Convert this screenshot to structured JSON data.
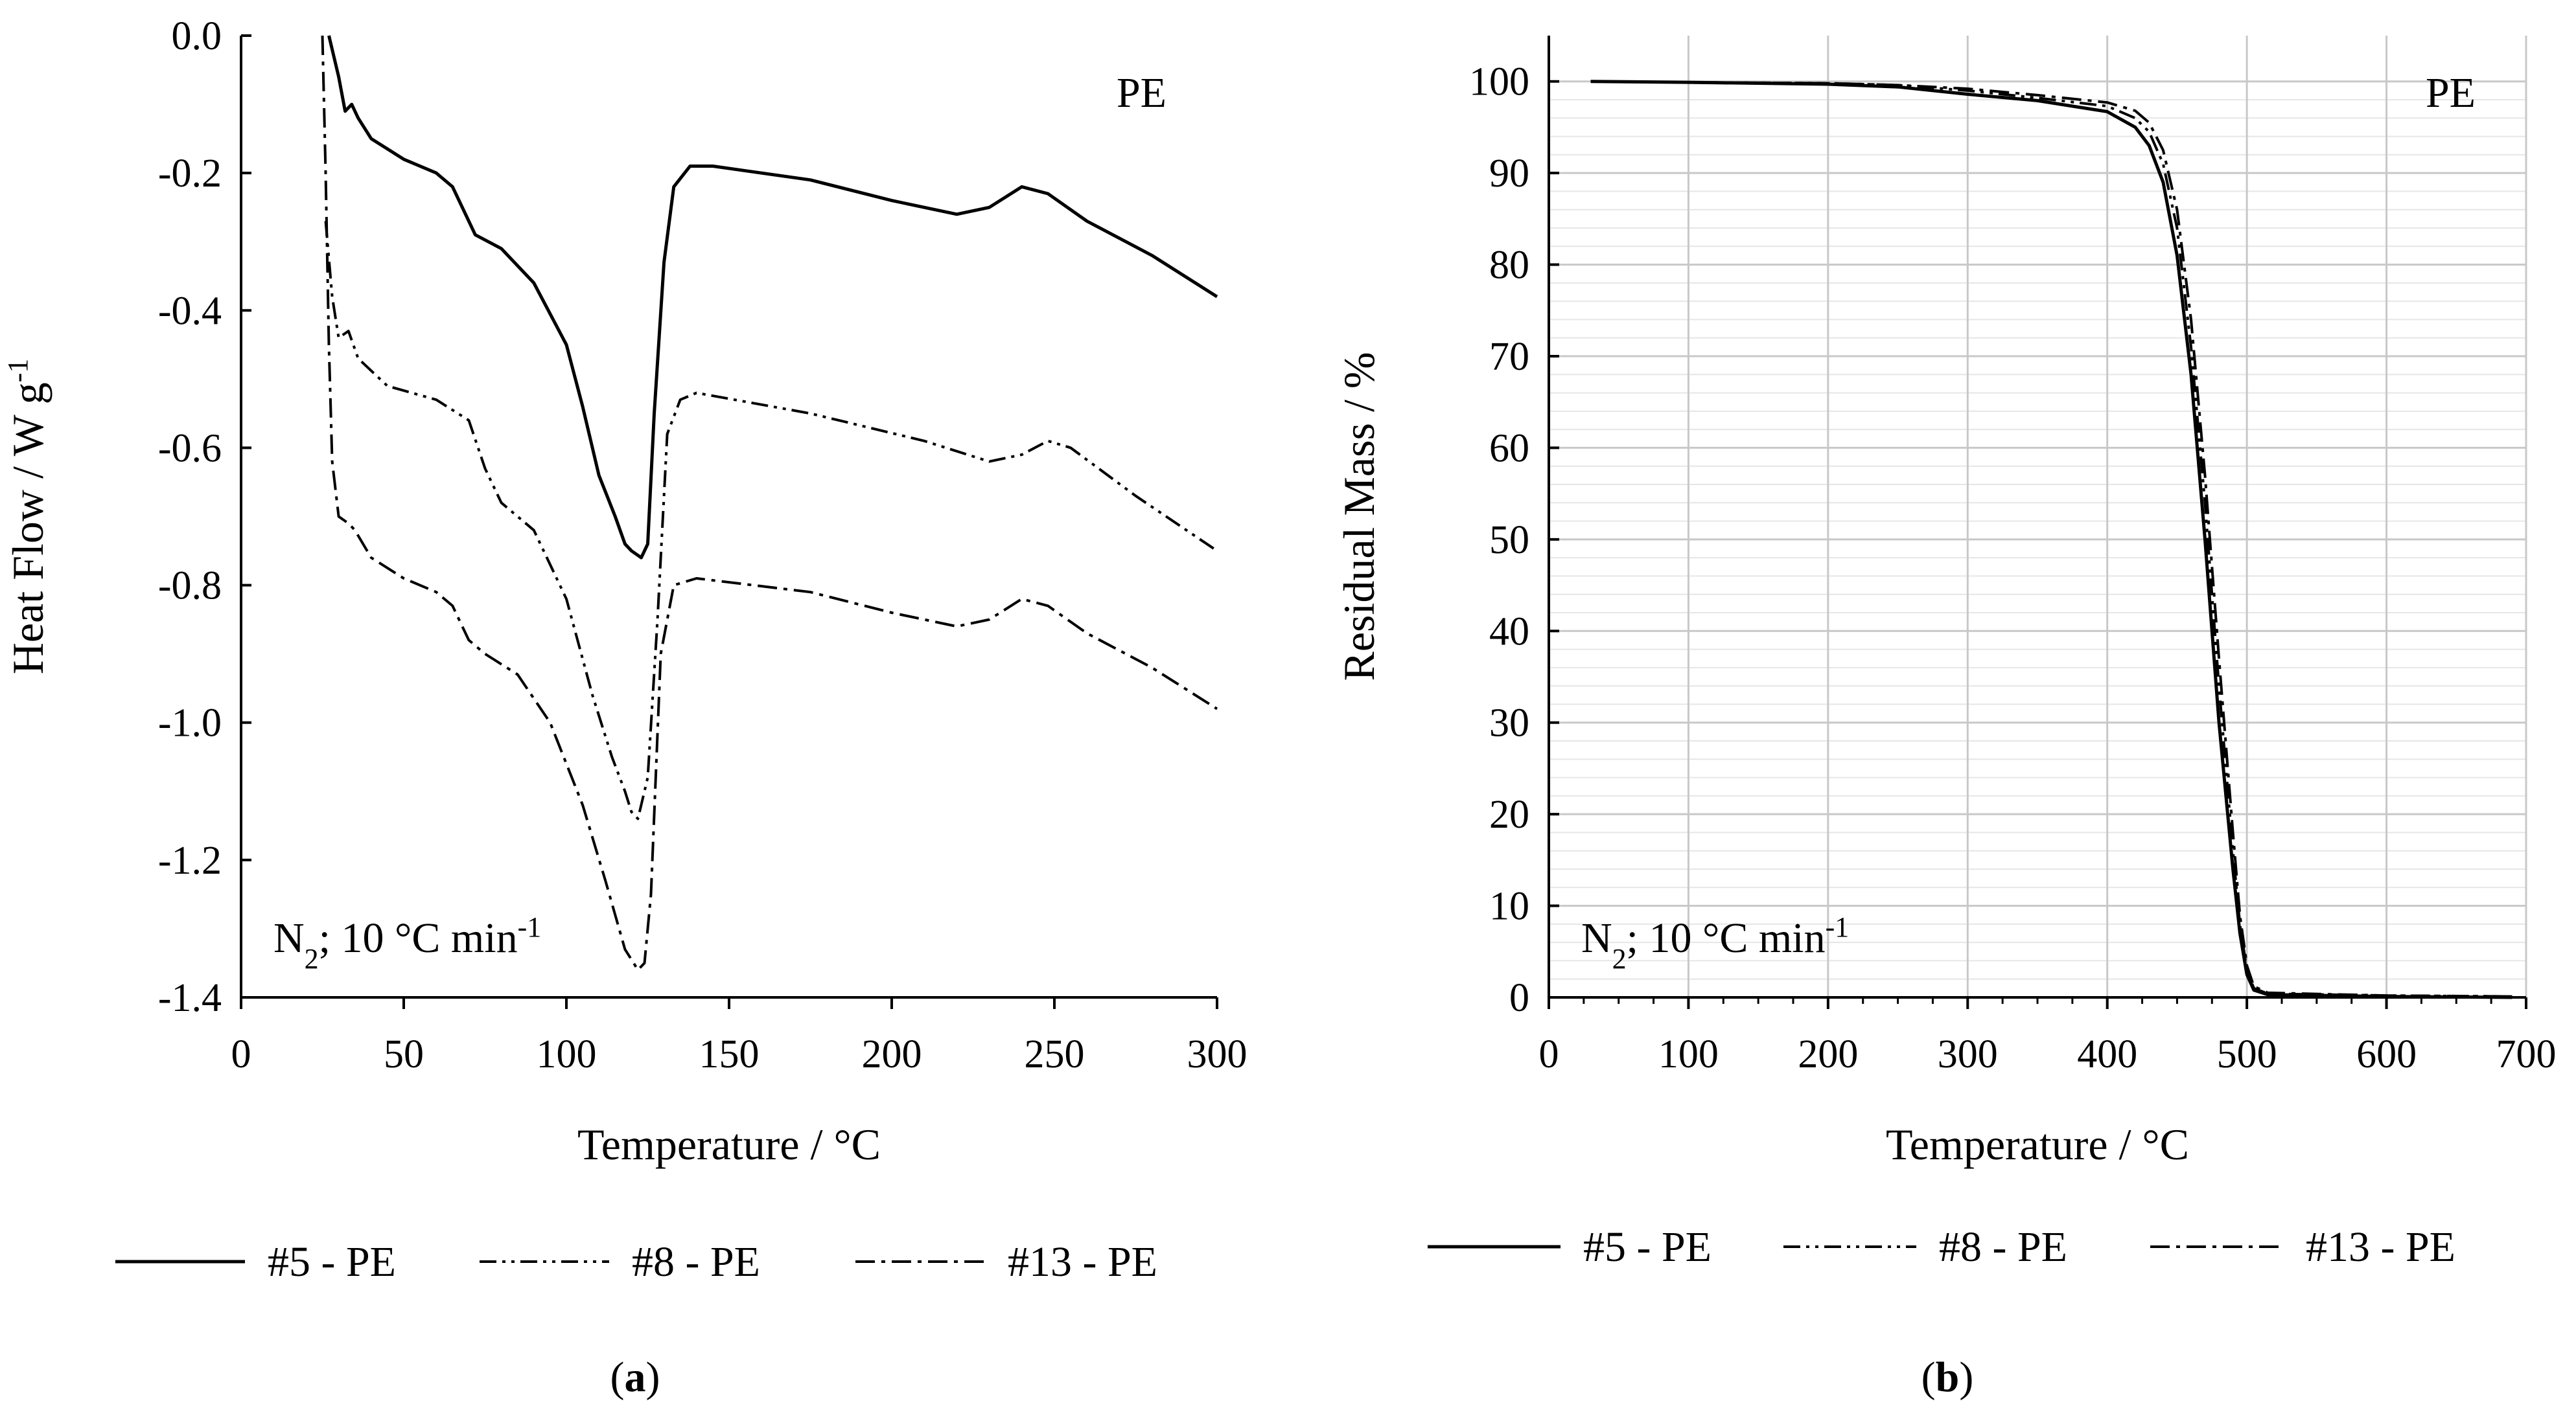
{
  "chart_data": [
    {
      "id": "a",
      "type": "line",
      "panel_label": "a",
      "annotation": "PE",
      "condition": {
        "base": "N",
        "sub": "2",
        "rest": "; 10 °C min",
        "sup": "-1"
      },
      "xlabel": "Temperature / °C",
      "ylabel": {
        "text": "Heat Flow / W g",
        "sup": "-1"
      },
      "xlim": [
        0,
        300
      ],
      "ylim": [
        -1.4,
        0.0
      ],
      "xticks": [
        "0",
        "50",
        "100",
        "150",
        "200",
        "250",
        "300"
      ],
      "yticks": [
        "0.0",
        "-0.2",
        "-0.4",
        "-0.6",
        "-0.8",
        "-1.0",
        "-1.2",
        "-1.4"
      ],
      "legend": [
        "#5 - PE",
        "#8 -  PE",
        "#13 - PE"
      ],
      "series": [
        {
          "name": "#5 - PE",
          "dash": "solid",
          "points": [
            [
              27,
              0.0
            ],
            [
              30,
              -0.06
            ],
            [
              32,
              -0.11
            ],
            [
              34,
              -0.1
            ],
            [
              36,
              -0.12
            ],
            [
              40,
              -0.15
            ],
            [
              50,
              -0.18
            ],
            [
              60,
              -0.2
            ],
            [
              65,
              -0.22
            ],
            [
              70,
              -0.27
            ],
            [
              72,
              -0.29
            ],
            [
              80,
              -0.31
            ],
            [
              90,
              -0.36
            ],
            [
              100,
              -0.45
            ],
            [
              105,
              -0.54
            ],
            [
              110,
              -0.64
            ],
            [
              115,
              -0.7
            ],
            [
              118,
              -0.74
            ],
            [
              120,
              -0.75
            ],
            [
              123,
              -0.76
            ],
            [
              125,
              -0.74
            ],
            [
              127,
              -0.55
            ],
            [
              130,
              -0.33
            ],
            [
              133,
              -0.22
            ],
            [
              138,
              -0.19
            ],
            [
              145,
              -0.19
            ],
            [
              175,
              -0.21
            ],
            [
              200,
              -0.24
            ],
            [
              220,
              -0.26
            ],
            [
              230,
              -0.25
            ],
            [
              240,
              -0.22
            ],
            [
              248,
              -0.23
            ],
            [
              260,
              -0.27
            ],
            [
              280,
              -0.32
            ],
            [
              300,
              -0.38
            ]
          ]
        },
        {
          "name": "#8 -  PE",
          "dash": "dash-dot-dot",
          "points": [
            [
              26,
              -0.27
            ],
            [
              28,
              -0.38
            ],
            [
              30,
              -0.44
            ],
            [
              33,
              -0.43
            ],
            [
              36,
              -0.47
            ],
            [
              45,
              -0.51
            ],
            [
              60,
              -0.53
            ],
            [
              70,
              -0.56
            ],
            [
              75,
              -0.63
            ],
            [
              80,
              -0.68
            ],
            [
              90,
              -0.72
            ],
            [
              100,
              -0.82
            ],
            [
              108,
              -0.96
            ],
            [
              114,
              -1.05
            ],
            [
              118,
              -1.1
            ],
            [
              120,
              -1.13
            ],
            [
              122,
              -1.14
            ],
            [
              125,
              -1.08
            ],
            [
              128,
              -0.85
            ],
            [
              131,
              -0.58
            ],
            [
              135,
              -0.53
            ],
            [
              140,
              -0.52
            ],
            [
              175,
              -0.55
            ],
            [
              210,
              -0.59
            ],
            [
              230,
              -0.62
            ],
            [
              240,
              -0.61
            ],
            [
              248,
              -0.59
            ],
            [
              255,
              -0.6
            ],
            [
              275,
              -0.67
            ],
            [
              300,
              -0.75
            ]
          ]
        },
        {
          "name": "#13 - PE",
          "dash": "dash-dot",
          "points": [
            [
              25,
              0.0
            ],
            [
              26,
              -0.2
            ],
            [
              27,
              -0.45
            ],
            [
              28,
              -0.62
            ],
            [
              30,
              -0.7
            ],
            [
              33,
              -0.71
            ],
            [
              35,
              -0.72
            ],
            [
              40,
              -0.76
            ],
            [
              50,
              -0.79
            ],
            [
              60,
              -0.81
            ],
            [
              65,
              -0.83
            ],
            [
              70,
              -0.88
            ],
            [
              75,
              -0.9
            ],
            [
              85,
              -0.93
            ],
            [
              95,
              -1.0
            ],
            [
              105,
              -1.12
            ],
            [
              112,
              -1.23
            ],
            [
              118,
              -1.33
            ],
            [
              122,
              -1.36
            ],
            [
              124,
              -1.35
            ],
            [
              126,
              -1.25
            ],
            [
              129,
              -0.9
            ],
            [
              133,
              -0.8
            ],
            [
              140,
              -0.79
            ],
            [
              175,
              -0.81
            ],
            [
              200,
              -0.84
            ],
            [
              220,
              -0.86
            ],
            [
              230,
              -0.85
            ],
            [
              240,
              -0.82
            ],
            [
              248,
              -0.83
            ],
            [
              260,
              -0.87
            ],
            [
              280,
              -0.92
            ],
            [
              300,
              -0.98
            ]
          ]
        }
      ]
    },
    {
      "id": "b",
      "type": "line",
      "panel_label": "b",
      "annotation": "PE",
      "condition": {
        "base": "N",
        "sub": "2",
        "rest": "; 10 °C min",
        "sup": "-1"
      },
      "xlabel": "Temperature / °C",
      "ylabel": {
        "text": "Residual Mass / %",
        "sup": ""
      },
      "xlim": [
        0,
        700
      ],
      "ylim": [
        0,
        105
      ],
      "xticks": [
        "0",
        "100",
        "200",
        "300",
        "400",
        "500",
        "600",
        "700"
      ],
      "yticks": [
        "0",
        "10",
        "20",
        "30",
        "40",
        "50",
        "60",
        "70",
        "80",
        "90",
        "100"
      ],
      "legend": [
        "#5 - PE",
        "#8 - PE",
        "#13 - PE"
      ],
      "series": [
        {
          "name": "#5 - PE",
          "dash": "solid",
          "points": [
            [
              30,
              100
            ],
            [
              100,
              99.9
            ],
            [
              200,
              99.7
            ],
            [
              250,
              99.4
            ],
            [
              300,
              98.6
            ],
            [
              350,
              97.9
            ],
            [
              400,
              96.7
            ],
            [
              420,
              95.0
            ],
            [
              430,
              93.0
            ],
            [
              440,
              89.0
            ],
            [
              450,
              81.0
            ],
            [
              460,
              68.0
            ],
            [
              470,
              50.0
            ],
            [
              480,
              30.0
            ],
            [
              490,
              14.0
            ],
            [
              495,
              7.0
            ],
            [
              500,
              2.5
            ],
            [
              505,
              0.8
            ],
            [
              515,
              0.3
            ],
            [
              600,
              0.1
            ],
            [
              690,
              0.0
            ]
          ]
        },
        {
          "name": "#8 - PE",
          "dash": "dash-dot-dot",
          "points": [
            [
              30,
              100
            ],
            [
              100,
              99.9
            ],
            [
              200,
              99.8
            ],
            [
              250,
              99.6
            ],
            [
              300,
              99.0
            ],
            [
              350,
              98.2
            ],
            [
              400,
              97.3
            ],
            [
              420,
              96.0
            ],
            [
              430,
              94.5
            ],
            [
              440,
              91.0
            ],
            [
              450,
              84.0
            ],
            [
              460,
              71.0
            ],
            [
              470,
              54.0
            ],
            [
              480,
              34.0
            ],
            [
              490,
              16.0
            ],
            [
              495,
              8.0
            ],
            [
              500,
              3.0
            ],
            [
              505,
              1.0
            ],
            [
              515,
              0.4
            ],
            [
              600,
              0.2
            ],
            [
              690,
              0.1
            ]
          ]
        },
        {
          "name": "#13 - PE",
          "dash": "dash-dot",
          "points": [
            [
              30,
              100
            ],
            [
              100,
              99.9
            ],
            [
              200,
              99.8
            ],
            [
              250,
              99.6
            ],
            [
              300,
              99.2
            ],
            [
              350,
              98.5
            ],
            [
              400,
              97.7
            ],
            [
              420,
              96.8
            ],
            [
              430,
              95.5
            ],
            [
              440,
              92.5
            ],
            [
              450,
              86.0
            ],
            [
              460,
              74.0
            ],
            [
              470,
              57.0
            ],
            [
              480,
              37.0
            ],
            [
              490,
              18.0
            ],
            [
              495,
              9.0
            ],
            [
              500,
              3.5
            ],
            [
              505,
              1.2
            ],
            [
              515,
              0.5
            ],
            [
              600,
              0.2
            ],
            [
              690,
              0.1
            ]
          ]
        }
      ]
    }
  ]
}
